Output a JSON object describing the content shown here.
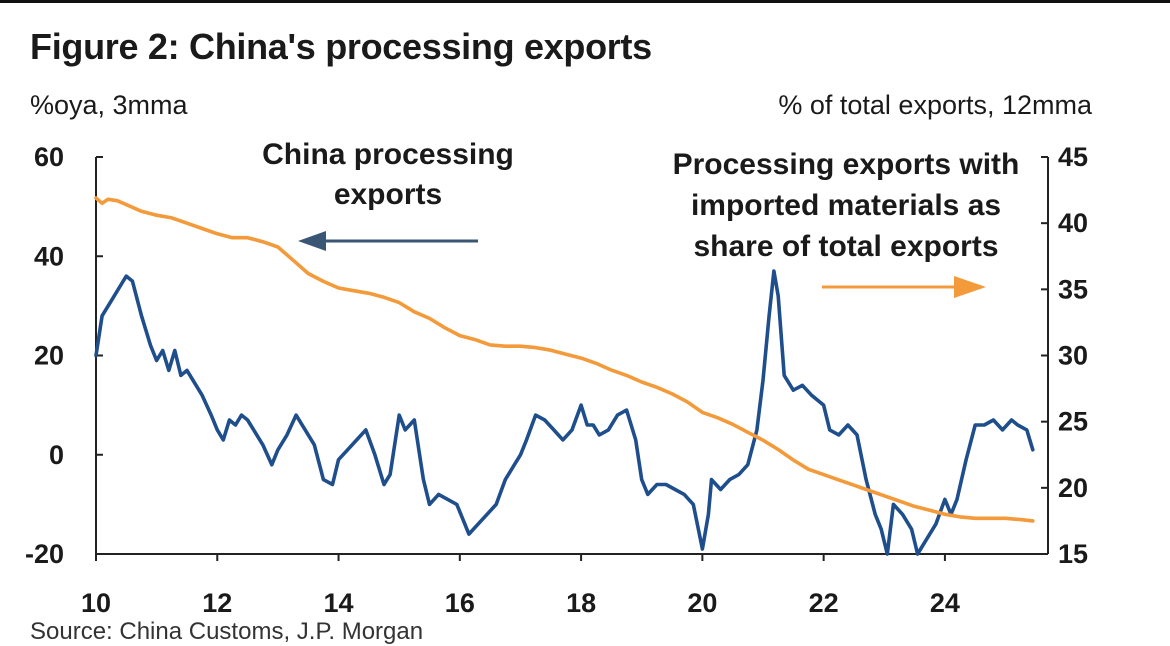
{
  "header": {
    "title": "Figure 2: China's processing exports",
    "left_unit": "%oya, 3mma",
    "right_unit": "% of total exports, 12mma"
  },
  "footer": {
    "source": "Source: China Customs, J.P. Morgan"
  },
  "colors": {
    "blue": "#1f4e8c",
    "orange": "#f39a3a",
    "arrow_blue": "#3a5675"
  },
  "chart_data": {
    "type": "line",
    "title": "Figure 2: China's processing exports",
    "xlim": [
      2010,
      2025.7
    ],
    "ylim_left": [
      -20,
      60
    ],
    "ylim_right": [
      15,
      45
    ],
    "x_ticks": [
      10,
      12,
      14,
      16,
      18,
      20,
      22,
      24
    ],
    "x_tick_labels": [
      "10",
      "12",
      "14",
      "16",
      "18",
      "20",
      "22",
      "24"
    ],
    "y_left_ticks": [
      -20,
      0,
      20,
      40,
      60
    ],
    "y_left_tick_labels": [
      "-20",
      "0",
      "20",
      "40",
      "60"
    ],
    "y_right_ticks": [
      15,
      20,
      25,
      30,
      35,
      40,
      45
    ],
    "y_right_tick_labels": [
      "15",
      "20",
      "25",
      "30",
      "35",
      "40",
      "45"
    ],
    "grid": false,
    "annotations": [
      {
        "lines": [
          "China processing",
          "exports"
        ],
        "arrow": "left"
      },
      {
        "lines": [
          "Processing exports with",
          "imported materials as",
          "share of total exports"
        ],
        "arrow": "right"
      }
    ],
    "series": [
      {
        "axis": "left",
        "color": "#1f4e8c",
        "x": [
          2010.0,
          2010.1,
          2010.25,
          2010.35,
          2010.5,
          2010.6,
          2010.75,
          2010.9,
          2011.0,
          2011.1,
          2011.2,
          2011.3,
          2011.4,
          2011.5,
          2011.6,
          2011.75,
          2011.9,
          2012.0,
          2012.1,
          2012.2,
          2012.3,
          2012.4,
          2012.5,
          2012.6,
          2012.75,
          2012.9,
          2013.0,
          2013.15,
          2013.3,
          2013.45,
          2013.6,
          2013.75,
          2013.9,
          2014.0,
          2014.15,
          2014.3,
          2014.45,
          2014.6,
          2014.75,
          2014.85,
          2015.0,
          2015.1,
          2015.25,
          2015.4,
          2015.5,
          2015.65,
          2015.8,
          2015.95,
          2016.05,
          2016.15,
          2016.3,
          2016.45,
          2016.6,
          2016.75,
          2016.9,
          2017.0,
          2017.1,
          2017.25,
          2017.4,
          2017.55,
          2017.7,
          2017.85,
          2018.0,
          2018.1,
          2018.2,
          2018.3,
          2018.45,
          2018.6,
          2018.75,
          2018.9,
          2019.0,
          2019.1,
          2019.25,
          2019.4,
          2019.55,
          2019.7,
          2019.85,
          2020.0,
          2020.1,
          2020.15,
          2020.3,
          2020.45,
          2020.6,
          2020.75,
          2020.9,
          2021.0,
          2021.1,
          2021.18,
          2021.25,
          2021.35,
          2021.5,
          2021.65,
          2021.8,
          2022.0,
          2022.1,
          2022.25,
          2022.4,
          2022.55,
          2022.7,
          2022.85,
          2022.95,
          2023.05,
          2023.15,
          2023.3,
          2023.45,
          2023.55,
          2023.7,
          2023.85,
          2024.0,
          2024.1,
          2024.2,
          2024.35,
          2024.5,
          2024.65,
          2024.8,
          2024.95,
          2025.1,
          2025.2,
          2025.35,
          2025.45
        ],
        "y": [
          20,
          28,
          31,
          33,
          36,
          35,
          28,
          22,
          19,
          21,
          17,
          21,
          16,
          17,
          15,
          12,
          8,
          5,
          3,
          7,
          6,
          8,
          7,
          5,
          2,
          -2,
          1,
          4,
          8,
          5,
          2,
          -5,
          -6,
          -1,
          1,
          3,
          5,
          0,
          -6,
          -4,
          8,
          5,
          7,
          -5,
          -10,
          -8,
          -9,
          -10,
          -13,
          -16,
          -14,
          -12,
          -10,
          -5,
          -2,
          0,
          3,
          8,
          7,
          5,
          3,
          5,
          10,
          6,
          6,
          4,
          5,
          8,
          9,
          3,
          -5,
          -8,
          -6,
          -6,
          -7,
          -8,
          -10,
          -19,
          -12,
          -5,
          -7,
          -5,
          -4,
          -2,
          5,
          15,
          28,
          37,
          32,
          16,
          13,
          14,
          12,
          10,
          5,
          4,
          6,
          4,
          -5,
          -12,
          -15,
          -20,
          -10,
          -12,
          -15,
          -20,
          -17,
          -14,
          -9,
          -12,
          -9,
          -1,
          6,
          6,
          7,
          5,
          7,
          6,
          5,
          1
        ]
      },
      {
        "axis": "right",
        "color": "#f39a3a",
        "x": [
          2010.0,
          2010.1,
          2010.2,
          2010.35,
          2010.5,
          2010.75,
          2011.0,
          2011.25,
          2011.5,
          2011.75,
          2012.0,
          2012.25,
          2012.5,
          2012.75,
          2013.0,
          2013.25,
          2013.5,
          2013.75,
          2014.0,
          2014.25,
          2014.5,
          2014.75,
          2015.0,
          2015.25,
          2015.5,
          2015.75,
          2016.0,
          2016.25,
          2016.5,
          2016.75,
          2017.0,
          2017.25,
          2017.5,
          2017.75,
          2018.0,
          2018.25,
          2018.5,
          2018.75,
          2019.0,
          2019.25,
          2019.5,
          2019.75,
          2020.0,
          2020.25,
          2020.5,
          2020.75,
          2021.0,
          2021.25,
          2021.5,
          2021.75,
          2022.0,
          2022.25,
          2022.5,
          2022.75,
          2023.0,
          2023.25,
          2023.5,
          2023.75,
          2024.0,
          2024.25,
          2024.5,
          2024.75,
          2025.0,
          2025.25,
          2025.45
        ],
        "y": [
          41.9,
          41.5,
          41.8,
          41.7,
          41.4,
          40.9,
          40.6,
          40.4,
          40.0,
          39.6,
          39.2,
          38.9,
          38.9,
          38.6,
          38.2,
          37.2,
          36.2,
          35.6,
          35.1,
          34.9,
          34.7,
          34.4,
          34.0,
          33.3,
          32.8,
          32.1,
          31.5,
          31.2,
          30.8,
          30.7,
          30.7,
          30.6,
          30.4,
          30.1,
          29.8,
          29.4,
          28.9,
          28.5,
          28.0,
          27.6,
          27.1,
          26.5,
          25.7,
          25.3,
          24.8,
          24.2,
          23.6,
          22.9,
          22.1,
          21.4,
          21.0,
          20.6,
          20.2,
          19.8,
          19.4,
          19.0,
          18.6,
          18.3,
          18.0,
          17.8,
          17.7,
          17.7,
          17.7,
          17.6,
          17.5
        ]
      }
    ]
  }
}
